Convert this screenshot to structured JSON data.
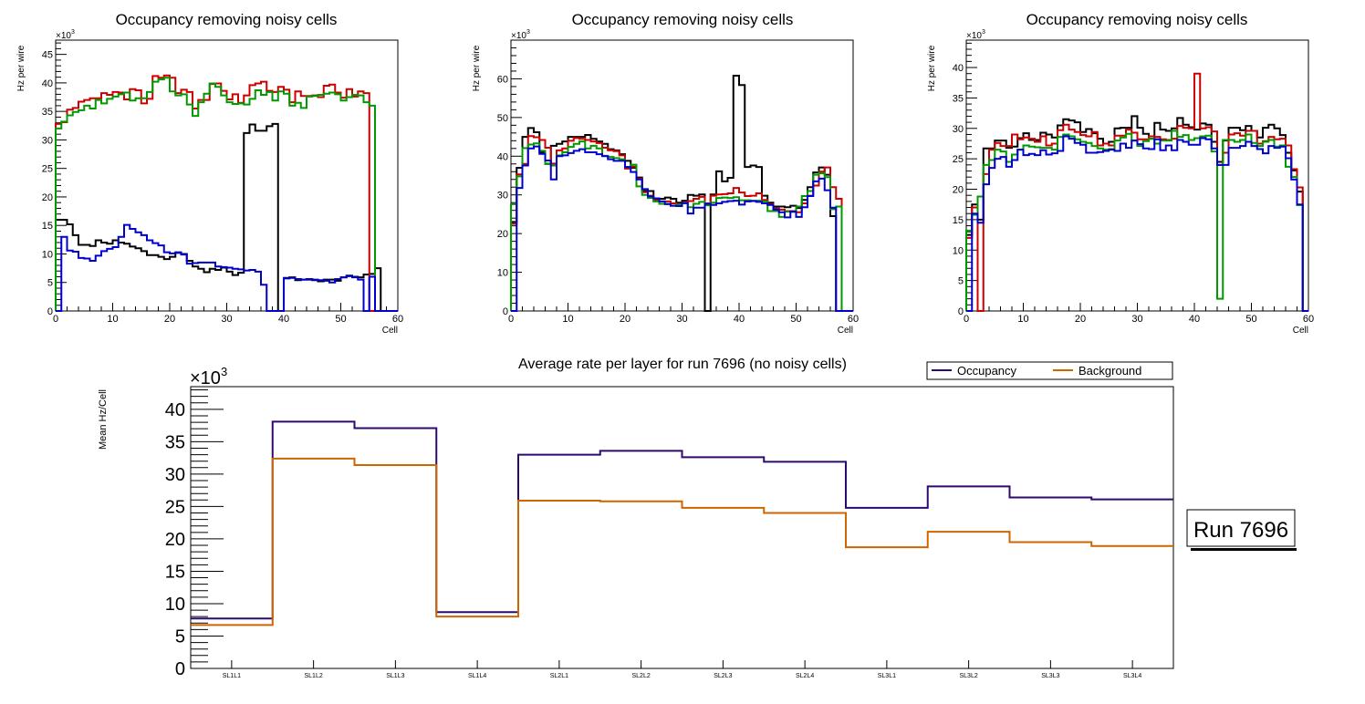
{
  "chart_data": [
    {
      "type": "histogram-step",
      "title": "Occupancy removing noisy cells",
      "xlabel": "Cell",
      "ylabel": "Hz per wire",
      "y_multiplier_label": "×10",
      "y_multiplier_exp": "3",
      "xlim": [
        0,
        60
      ],
      "ylim": [
        0,
        47.5
      ],
      "x_ticks": [
        0,
        10,
        20,
        30,
        40,
        50,
        60
      ],
      "y_ticks": [
        0,
        5,
        10,
        15,
        20,
        25,
        30,
        35,
        40,
        45
      ],
      "units": "thousands of Hz",
      "series": [
        {
          "name": "black",
          "color": "#000000",
          "values": [
            16,
            16,
            15.2,
            13.3,
            11.6,
            11.6,
            11.4,
            12.4,
            12,
            11.8,
            12.4,
            12,
            11.8,
            11.3,
            11,
            10.5,
            9.8,
            9.8,
            9.5,
            9.1,
            9.5,
            10.2,
            10,
            8.8,
            7.8,
            7.4,
            6.8,
            7.4,
            7.2,
            7.6,
            6.9,
            6.3,
            6.7,
            31.2,
            32.7,
            31.6,
            31.6,
            32.4,
            32.8,
            0,
            5.8,
            5.9,
            5.4,
            5.5,
            5.5,
            5.4,
            5.2,
            5.5,
            5.5,
            5.3,
            5.9,
            6.2,
            6,
            5.9,
            6.4,
            6.5,
            7.5,
            0,
            0,
            0
          ]
        },
        {
          "name": "red",
          "color": "#cc0000",
          "values": [
            32.8,
            33.1,
            35.3,
            35.6,
            36.7,
            37,
            37.3,
            37.3,
            38.2,
            37.9,
            38.4,
            38.3,
            37.1,
            38.9,
            38.7,
            36.4,
            37.2,
            41.2,
            40.9,
            41.3,
            40.9,
            38.2,
            38.8,
            38.4,
            35.5,
            37,
            37,
            39.8,
            39.9,
            38.6,
            37.1,
            38,
            36.5,
            37.8,
            39.6,
            39.9,
            40.2,
            38.6,
            38.4,
            39.3,
            38.8,
            36.6,
            38.5,
            37.7,
            37.7,
            37.8,
            37.5,
            39.5,
            39.7,
            38.3,
            37.4,
            38.9,
            37.6,
            38.5,
            38.2,
            0,
            0,
            0,
            0,
            0
          ]
        },
        {
          "name": "green",
          "color": "#009900",
          "values": [
            32,
            33.2,
            34.3,
            34.9,
            35.2,
            36,
            35.5,
            37,
            36.4,
            37.2,
            37.6,
            38,
            38.3,
            36.9,
            37.3,
            37.3,
            38.4,
            40.2,
            40.6,
            40.9,
            38.5,
            37.8,
            38,
            36.2,
            34.2,
            36.6,
            38.1,
            39.9,
            39.3,
            37.8,
            36.6,
            36.3,
            36.4,
            36.2,
            37.2,
            38.7,
            37.9,
            38.4,
            36.9,
            38.5,
            38.1,
            36,
            36.5,
            35.6,
            37.6,
            37.7,
            37.9,
            38.1,
            38.3,
            38,
            36.9,
            37.5,
            37.9,
            37.8,
            36.6,
            36,
            0,
            0,
            0,
            0
          ]
        },
        {
          "name": "blue",
          "color": "#0000cc",
          "values": [
            0,
            13,
            10.6,
            10.4,
            9.3,
            9.2,
            8.8,
            9.7,
            10.5,
            10.9,
            11.2,
            13,
            15.1,
            14.4,
            13.8,
            13.3,
            12.4,
            11.9,
            11.5,
            10.3,
            10.1,
            10.3,
            9.9,
            8.3,
            8.4,
            8.5,
            8.5,
            8.5,
            7.8,
            7.7,
            7.6,
            7.4,
            7.3,
            7.1,
            7.2,
            6.9,
            4.6,
            0,
            0,
            0,
            5.7,
            5.8,
            5.6,
            5.5,
            5.6,
            5.5,
            5.4,
            5.3,
            5,
            5.6,
            5.9,
            6.1,
            5.9,
            5.5,
            0,
            6,
            0,
            0,
            0,
            0
          ]
        }
      ]
    },
    {
      "type": "histogram-step",
      "title": "Occupancy removing noisy cells",
      "xlabel": "Cell",
      "ylabel": "Hz per wire",
      "y_multiplier_label": "×10",
      "y_multiplier_exp": "3",
      "xlim": [
        0,
        60
      ],
      "ylim": [
        0,
        70
      ],
      "x_ticks": [
        0,
        10,
        20,
        30,
        40,
        50,
        60
      ],
      "y_ticks": [
        0,
        10,
        20,
        30,
        40,
        50,
        60
      ],
      "units": "thousands of Hz",
      "series": [
        {
          "name": "black",
          "color": "#000000",
          "values": [
            23,
            37,
            45,
            47.3,
            46.2,
            41,
            38,
            42.7,
            43.2,
            43.8,
            45,
            45,
            45,
            45.5,
            44.5,
            43.8,
            43.2,
            41.8,
            41.5,
            40.5,
            38.8,
            37,
            34.5,
            31,
            31,
            29,
            29,
            29.3,
            29,
            28,
            28.5,
            30,
            29.8,
            30.1,
            0,
            30.1,
            36.1,
            33.5,
            34.4,
            60.8,
            58.4,
            37.2,
            37.6,
            37.2,
            29.8,
            28,
            27,
            27,
            26.8,
            27.2,
            26.6,
            28.7,
            32,
            35.8,
            37.1,
            35.2,
            24.5,
            0,
            0,
            0
          ]
        },
        {
          "name": "red",
          "color": "#cc0000",
          "values": [
            22.5,
            35.3,
            38,
            45.2,
            44.9,
            44.2,
            42.2,
            38.1,
            41.5,
            42,
            44,
            44.7,
            44.5,
            44.2,
            43.8,
            43.4,
            42.2,
            41.5,
            41.3,
            40.2,
            36.8,
            37.3,
            34.2,
            30.7,
            29.8,
            28.6,
            28.3,
            28.3,
            27.8,
            27.6,
            28,
            28.4,
            29,
            29.5,
            27.8,
            29.8,
            30.1,
            30.2,
            30.4,
            31.8,
            30.6,
            29.7,
            29.8,
            30.4,
            28.7,
            27.6,
            26.5,
            26.2,
            25.8,
            25.8,
            25.5,
            27.8,
            29.8,
            32.4,
            36,
            37.1,
            32,
            29,
            0,
            0
          ]
        },
        {
          "name": "green",
          "color": "#009900",
          "values": [
            27.6,
            34.8,
            42.1,
            43,
            43.3,
            41.4,
            38.1,
            37.6,
            40.2,
            41,
            42.4,
            43.2,
            43.8,
            42,
            42.7,
            42,
            40.1,
            39.8,
            39.5,
            39.2,
            37.2,
            37.8,
            32.2,
            30,
            29.2,
            28.3,
            27.7,
            27.7,
            27.2,
            27.5,
            27.8,
            26.8,
            27.7,
            28.2,
            27.3,
            28,
            29.2,
            29.3,
            29.2,
            29.4,
            28.6,
            28.6,
            28.5,
            28.5,
            28.3,
            25.8,
            25.8,
            24.3,
            25.7,
            25.6,
            27,
            29.7,
            31,
            35.2,
            35.6,
            34.6,
            26.3,
            27,
            0,
            0
          ]
        },
        {
          "name": "blue",
          "color": "#0000cc",
          "values": [
            0,
            31.8,
            37.6,
            42,
            42.5,
            40.6,
            38.9,
            34,
            40,
            40.2,
            40.8,
            41.4,
            41.8,
            41,
            41,
            40.5,
            40,
            39.2,
            38.8,
            38.8,
            37.2,
            35.9,
            34,
            31.5,
            29.6,
            29.1,
            28.3,
            27.6,
            27.2,
            27.1,
            27.9,
            25.2,
            26.7,
            26.7,
            27.7,
            27.4,
            27.8,
            28.2,
            28.4,
            28.5,
            27.5,
            28.3,
            28.4,
            28.2,
            27.8,
            27.4,
            26.2,
            25.5,
            24.2,
            25.7,
            24.3,
            26.8,
            29.7,
            33.5,
            34.2,
            31.2,
            26.7,
            0,
            0,
            0
          ]
        }
      ]
    },
    {
      "type": "histogram-step",
      "title": "Occupancy removing noisy cells",
      "xlabel": "Cell",
      "ylabel": "Hz per wire",
      "y_multiplier_label": "×10",
      "y_multiplier_exp": "3",
      "xlim": [
        0,
        60
      ],
      "ylim": [
        0,
        44.5
      ],
      "x_ticks": [
        0,
        10,
        20,
        30,
        40,
        50,
        60
      ],
      "y_ticks": [
        0,
        5,
        10,
        15,
        20,
        25,
        30,
        35,
        40
      ],
      "units": "thousands of Hz",
      "series": [
        {
          "name": "black",
          "color": "#000000",
          "values": [
            12.5,
            17.5,
            15,
            26.7,
            26.7,
            28,
            28,
            26.8,
            27,
            28.4,
            29.2,
            28.1,
            28.1,
            29.3,
            29,
            28.5,
            30.5,
            31.5,
            31.3,
            31,
            29.4,
            29.9,
            29.2,
            28.3,
            27.5,
            27.8,
            30,
            30.1,
            30.1,
            32,
            30.1,
            29.1,
            28.3,
            30.9,
            29.8,
            29.6,
            30,
            31.7,
            30.6,
            30.2,
            29.8,
            30.8,
            30.6,
            27.8,
            24.5,
            28,
            30.1,
            30.1,
            29.7,
            30.4,
            29.6,
            28.5,
            30.1,
            30.6,
            30,
            28.9,
            26,
            23.1,
            19.6,
            0
          ]
        },
        {
          "name": "red",
          "color": "#cc0000",
          "values": [
            12,
            17,
            0,
            22.5,
            26.5,
            27.6,
            27.1,
            27.1,
            29,
            28.2,
            28.5,
            28.3,
            27.8,
            28.7,
            27.2,
            27.5,
            29.7,
            30.6,
            29.8,
            29.4,
            28.9,
            28.7,
            29.4,
            27.2,
            27.5,
            27.2,
            28.8,
            28.8,
            29.8,
            29.3,
            28.2,
            28.2,
            28.7,
            28.6,
            28.2,
            28.1,
            28.3,
            30.4,
            30.1,
            30,
            39,
            30,
            30.2,
            29.5,
            24,
            26,
            29,
            29.2,
            28.8,
            29.6,
            29.6,
            27.5,
            27.9,
            28.6,
            28.2,
            28.3,
            27.2,
            23.3,
            20.3,
            0
          ]
        },
        {
          "name": "green",
          "color": "#009900",
          "values": [
            13.2,
            15.8,
            18.8,
            24,
            24.8,
            26.5,
            26.2,
            24.5,
            25.7,
            26.5,
            27.2,
            27,
            26.9,
            26.8,
            26.8,
            26.5,
            28.6,
            29,
            28.7,
            28.2,
            27.8,
            27.6,
            27.1,
            26.7,
            26.5,
            26.6,
            28,
            28.5,
            29.1,
            28,
            27.1,
            27.9,
            28.3,
            27.5,
            28,
            28,
            29.6,
            28.6,
            28.9,
            28.1,
            28.4,
            28.7,
            28.8,
            26.2,
            2,
            28.1,
            28.1,
            27.8,
            28.1,
            29,
            27.6,
            27.1,
            27.8,
            28.1,
            27,
            27.2,
            23.7,
            22,
            17.4,
            0
          ]
        },
        {
          "name": "blue",
          "color": "#0000cc",
          "values": [
            0,
            16,
            14.5,
            20.8,
            23.5,
            25,
            25.3,
            23.7,
            24.8,
            26.5,
            25.6,
            25.8,
            25.6,
            26.4,
            25.7,
            25.9,
            26.3,
            28.7,
            28.3,
            27.6,
            27.3,
            26,
            26,
            26.1,
            26.3,
            26.5,
            26.3,
            27.5,
            26.8,
            28,
            27.4,
            26.7,
            26.6,
            28.2,
            26.4,
            27.2,
            26.4,
            28.1,
            27.8,
            27.3,
            27.3,
            28.4,
            28.2,
            26.7,
            24,
            24,
            26.8,
            26.8,
            27.1,
            27.8,
            27.1,
            26.6,
            25.9,
            27.1,
            26.8,
            27,
            25.1,
            21.6,
            17.5,
            0
          ]
        }
      ]
    },
    {
      "type": "histogram-step",
      "title": "Average rate per layer for run 7696 (no noisy cells)",
      "xlabel": "",
      "ylabel": "Mean Hz/Cell",
      "y_multiplier_label": "×10",
      "y_multiplier_exp": "3",
      "ylim": [
        0,
        43.5
      ],
      "y_ticks": [
        0,
        5,
        10,
        15,
        20,
        25,
        30,
        35,
        40
      ],
      "units": "thousands of Hz",
      "categories": [
        "SL1L1",
        "SL1L2",
        "SL1L3",
        "SL1L4",
        "SL2L1",
        "SL2L2",
        "SL2L3",
        "SL2L4",
        "SL3L1",
        "SL3L2",
        "SL3L3",
        "SL3L4"
      ],
      "legend": {
        "placement": "top-right",
        "entries": [
          "Occupancy",
          "Background"
        ]
      },
      "series": [
        {
          "name": "Occupancy",
          "color": "#2e0a6e",
          "values": [
            7.7,
            38.1,
            37.1,
            8.7,
            33,
            33.6,
            32.6,
            31.9,
            24.8,
            28.1,
            26.4,
            26.1
          ]
        },
        {
          "name": "Background",
          "color": "#cc6600",
          "values": [
            6.7,
            32.4,
            31.4,
            8,
            25.9,
            25.8,
            24.8,
            24,
            18.7,
            21.1,
            19.5,
            18.9
          ]
        }
      ]
    }
  ],
  "annotation": {
    "run_label": "Run 7696"
  }
}
